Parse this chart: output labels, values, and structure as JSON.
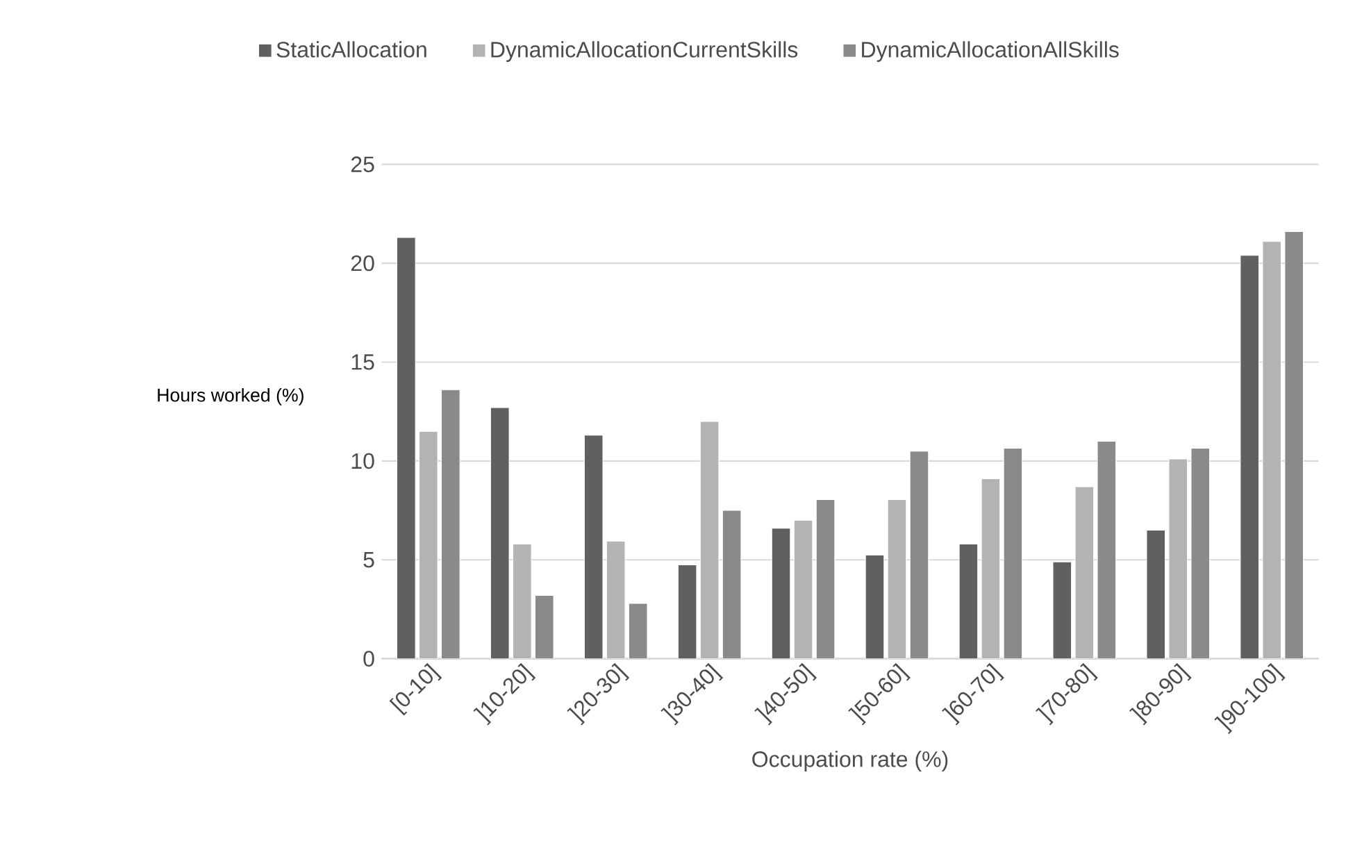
{
  "chart_data": {
    "type": "bar",
    "xlabel": "Occupation rate (%)",
    "ylabel": "Hours worked (%)",
    "categories": [
      "[0-10]",
      "]10-20]",
      "]20-30]",
      "]30-40]",
      "]40-50]",
      "]50-60]",
      "]60-70]",
      "]70-80]",
      "]80-90]",
      "]90-100]"
    ],
    "series": [
      {
        "name": "StaticAllocation",
        "color": "#606060",
        "values": [
          21.3,
          12.7,
          11.3,
          4.75,
          6.6,
          5.25,
          5.8,
          4.9,
          6.5,
          20.4
        ]
      },
      {
        "name": "DynamicAllocationCurrentSkills",
        "color": "#b3b3b3",
        "values": [
          11.5,
          5.8,
          5.95,
          12.0,
          7.0,
          8.05,
          9.1,
          8.7,
          10.1,
          21.1
        ]
      },
      {
        "name": "DynamicAllocationAllSkills",
        "color": "#8a8a8a",
        "values": [
          13.6,
          3.2,
          2.8,
          7.5,
          8.05,
          10.5,
          10.65,
          11.0,
          10.65,
          21.6
        ]
      }
    ],
    "ylim": [
      0,
      25
    ],
    "yticks": [
      0,
      5,
      10,
      15,
      20,
      25
    ],
    "grid": "y",
    "legend": "top"
  }
}
